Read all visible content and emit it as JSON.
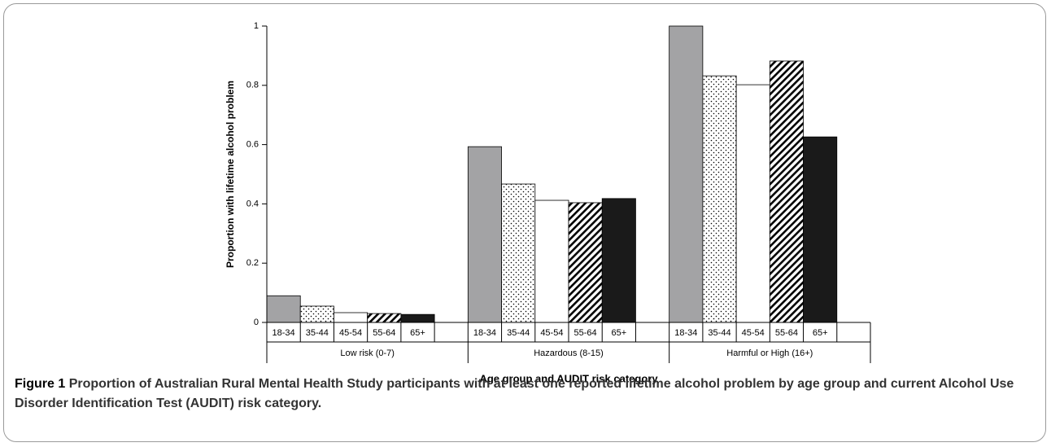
{
  "chart_data": {
    "type": "bar",
    "y_label": "Proportion with lifetime alcohol problem",
    "x_label": "Age group and AUDIT risk category",
    "categories": [
      "Low risk (0-7)",
      "Hazardous (8-15)",
      "Harmful or High (16+)"
    ],
    "series": [
      {
        "name": "18-34",
        "color": "#a3a3a5",
        "pattern": "solid",
        "values": [
          0.09,
          0.593,
          1.0
        ]
      },
      {
        "name": "35-44",
        "color": "#ffffff",
        "pattern": "dots",
        "values": [
          0.055,
          0.467,
          0.832
        ]
      },
      {
        "name": "45-54",
        "color": "#ffffff",
        "pattern": "solid",
        "values": [
          0.033,
          0.412,
          0.802
        ]
      },
      {
        "name": "55-64",
        "color": "#ffffff",
        "pattern": "stripes",
        "values": [
          0.03,
          0.404,
          0.882
        ]
      },
      {
        "name": "65+",
        "color": "#1a1a1a",
        "pattern": "solid",
        "values": [
          0.027,
          0.418,
          0.626
        ]
      }
    ],
    "ylim": [
      0,
      1
    ],
    "yticks": [
      0,
      0.2,
      0.4,
      0.6,
      0.8,
      1
    ],
    "caption_label": "Figure 1",
    "caption": "Proportion of Australian Rural Mental Health Study participants with at least one reported lifetime alcohol problem by age group and current Alcohol Use Disorder Identification Test (AUDIT) risk category."
  }
}
